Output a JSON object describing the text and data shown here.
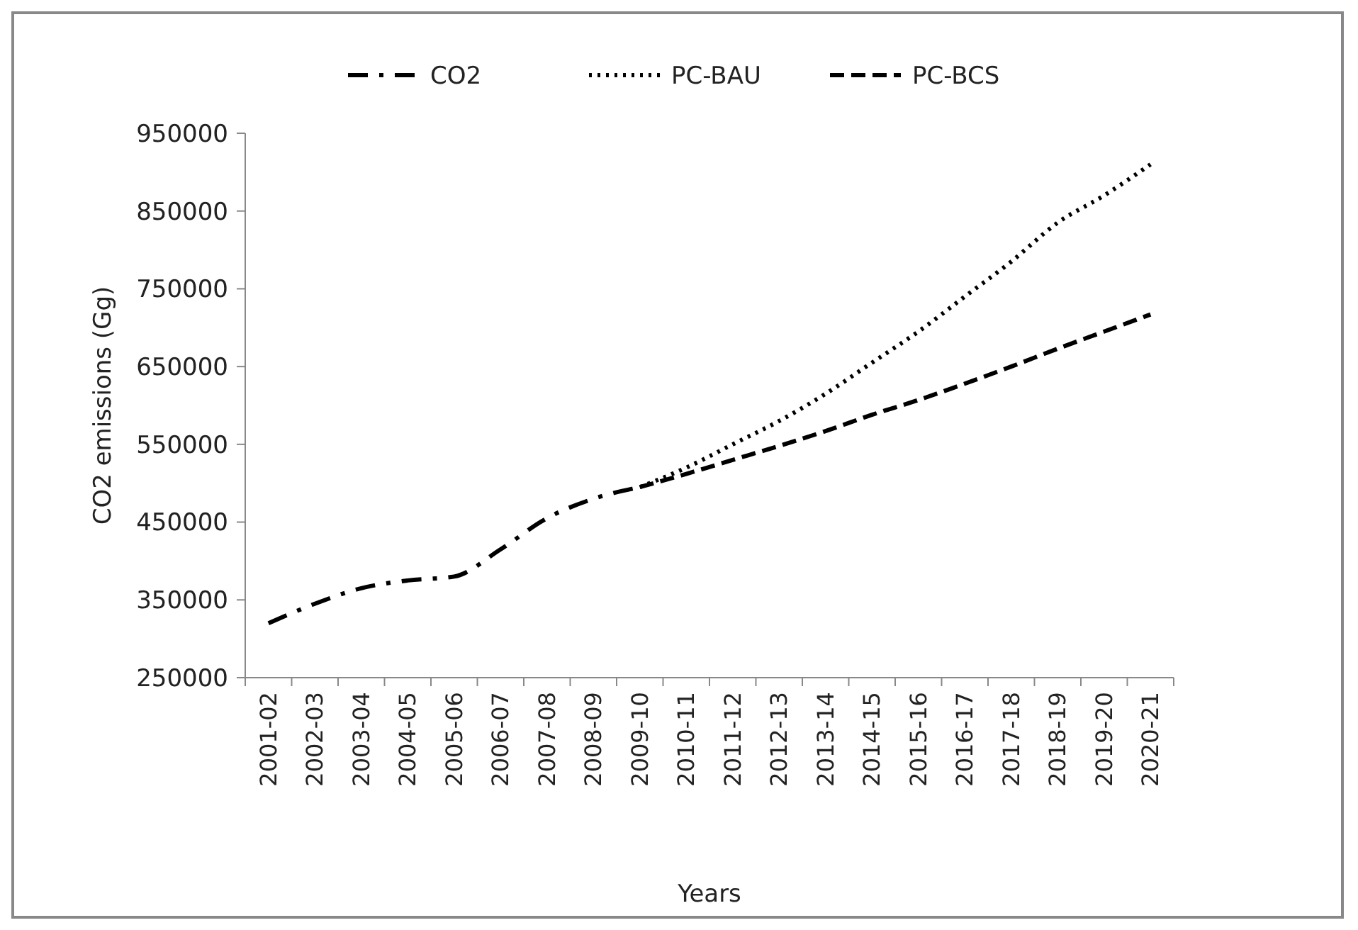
{
  "chart_data": {
    "type": "line",
    "ylabel": "CO2 emissions (Gg)",
    "xlabel": "Years",
    "categories": [
      "2001-02",
      "2002-03",
      "2003-04",
      "2004-05",
      "2005-06",
      "2006-07",
      "2007-08",
      "2008-09",
      "2009-10",
      "2010-11",
      "2011-12",
      "2012-13",
      "2013-14",
      "2014-15",
      "2015-16",
      "2016-17",
      "2017-18",
      "2018-19",
      "2019-20",
      "2020-21"
    ],
    "ylim": [
      250000,
      950000
    ],
    "yticks": [
      250000,
      350000,
      450000,
      550000,
      650000,
      750000,
      850000,
      950000
    ],
    "grid": false,
    "legend": "top",
    "series": [
      {
        "name": "CO2",
        "color": "#000000",
        "line_style": "dashdot",
        "values": [
          320000,
          345000,
          365000,
          375000,
          380000,
          415000,
          455000,
          480000,
          495000,
          null,
          null,
          null,
          null,
          null,
          null,
          null,
          null,
          null,
          null,
          null
        ]
      },
      {
        "name": "PC-BAU",
        "color": "#000000",
        "line_style": "dotted",
        "values": [
          null,
          null,
          null,
          null,
          null,
          null,
          null,
          null,
          495000,
          520000,
          550000,
          580000,
          615000,
          655000,
          695000,
          740000,
          785000,
          835000,
          870000,
          910000
        ]
      },
      {
        "name": "PC-BCS",
        "color": "#000000",
        "line_style": "dashed",
        "values": [
          null,
          null,
          null,
          null,
          null,
          null,
          null,
          null,
          495000,
          512000,
          530000,
          548000,
          567000,
          588000,
          607000,
          628000,
          650000,
          673000,
          695000,
          717000
        ]
      }
    ]
  }
}
